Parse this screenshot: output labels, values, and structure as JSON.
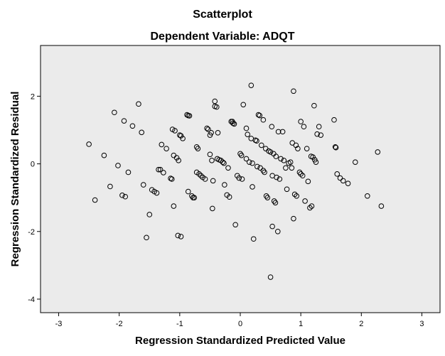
{
  "chart_data": {
    "type": "scatter",
    "title": "Scatterplot",
    "subtitle": "Dependent Variable: ADQT",
    "xlabel": "Regression Standardized Predicted Value",
    "ylabel": "Regression Standardized Residual",
    "xlim": [
      -3.3,
      3.3
    ],
    "ylim": [
      -4.4,
      3.5
    ],
    "xticks": [
      -3,
      -2,
      -1,
      0,
      1,
      2,
      3
    ],
    "yticks": [
      -4,
      -2,
      0,
      2
    ],
    "x_tick_labels": [
      "-3",
      "-2",
      "-1",
      "0",
      "1",
      "2",
      "3"
    ],
    "y_tick_labels": [
      "-4",
      "-2",
      "0",
      "2"
    ],
    "grid": false,
    "background_color": "#ebebeb",
    "marker_style": "open-circle",
    "points": [
      [
        -2.5,
        0.58
      ],
      [
        -2.4,
        -1.07
      ],
      [
        -2.25,
        0.25
      ],
      [
        -2.15,
        -0.67
      ],
      [
        -2.08,
        1.52
      ],
      [
        -2.02,
        -0.05
      ],
      [
        -1.95,
        -0.93
      ],
      [
        -1.9,
        -0.97
      ],
      [
        -1.92,
        1.27
      ],
      [
        -1.85,
        -0.25
      ],
      [
        -1.78,
        1.12
      ],
      [
        -1.68,
        1.77
      ],
      [
        -1.63,
        0.93
      ],
      [
        -1.6,
        -0.62
      ],
      [
        -1.55,
        -2.18
      ],
      [
        -1.5,
        -1.5
      ],
      [
        -1.46,
        -0.77
      ],
      [
        -1.42,
        -0.82
      ],
      [
        -1.38,
        -0.86
      ],
      [
        -1.35,
        -0.17
      ],
      [
        -1.32,
        -0.17
      ],
      [
        -1.3,
        0.57
      ],
      [
        -1.27,
        -0.26
      ],
      [
        -1.22,
        0.45
      ],
      [
        -1.15,
        -0.43
      ],
      [
        -1.13,
        -0.45
      ],
      [
        -1.12,
        1.02
      ],
      [
        -1.1,
        -1.25
      ],
      [
        -1.08,
        0.98
      ],
      [
        -1.1,
        0.25
      ],
      [
        -1.05,
        0.18
      ],
      [
        -1.02,
        0.1
      ],
      [
        -1.0,
        0.85
      ],
      [
        -0.98,
        0.83
      ],
      [
        -1.03,
        -2.12
      ],
      [
        -0.98,
        -2.15
      ],
      [
        -0.95,
        0.75
      ],
      [
        -0.88,
        1.45
      ],
      [
        -0.86,
        1.43
      ],
      [
        -0.84,
        1.42
      ],
      [
        -0.86,
        -0.82
      ],
      [
        -0.8,
        -0.95
      ],
      [
        -0.76,
        -1.0
      ],
      [
        -0.78,
        -1.0
      ],
      [
        -0.72,
        0.5
      ],
      [
        -0.7,
        0.45
      ],
      [
        -0.72,
        -0.25
      ],
      [
        -0.68,
        -0.3
      ],
      [
        -0.65,
        -0.35
      ],
      [
        -0.62,
        -0.4
      ],
      [
        -0.58,
        -0.45
      ],
      [
        -0.55,
        1.05
      ],
      [
        -0.53,
        1.02
      ],
      [
        -0.5,
        0.85
      ],
      [
        -0.5,
        0.28
      ],
      [
        -0.48,
        0.92
      ],
      [
        -0.47,
        0.1
      ],
      [
        -0.46,
        -1.32
      ],
      [
        -0.45,
        -0.5
      ],
      [
        -0.42,
        1.85
      ],
      [
        -0.42,
        1.7
      ],
      [
        -0.39,
        1.68
      ],
      [
        -0.38,
        0.15
      ],
      [
        -0.37,
        0.92
      ],
      [
        -0.35,
        0.12
      ],
      [
        -0.32,
        0.1
      ],
      [
        -0.29,
        0.05
      ],
      [
        -0.27,
        0.02
      ],
      [
        -0.26,
        -0.62
      ],
      [
        -0.22,
        -0.92
      ],
      [
        -0.2,
        -0.12
      ],
      [
        -0.18,
        -0.98
      ],
      [
        -0.15,
        1.25
      ],
      [
        -0.13,
        1.25
      ],
      [
        -0.12,
        1.2
      ],
      [
        -0.1,
        1.18
      ],
      [
        -0.08,
        -1.8
      ],
      [
        -0.05,
        -0.35
      ],
      [
        -0.02,
        -0.42
      ],
      [
        0.0,
        0.3
      ],
      [
        0.02,
        0.25
      ],
      [
        0.03,
        -0.45
      ],
      [
        0.05,
        1.75
      ],
      [
        0.1,
        1.05
      ],
      [
        0.12,
        0.87
      ],
      [
        0.1,
        0.15
      ],
      [
        0.15,
        0.05
      ],
      [
        0.18,
        0.75
      ],
      [
        0.2,
        0.02
      ],
      [
        0.18,
        2.32
      ],
      [
        0.2,
        -0.68
      ],
      [
        0.22,
        -2.22
      ],
      [
        0.25,
        0.7
      ],
      [
        0.27,
        0.68
      ],
      [
        0.28,
        -0.08
      ],
      [
        0.3,
        1.45
      ],
      [
        0.32,
        1.43
      ],
      [
        0.33,
        -0.12
      ],
      [
        0.35,
        0.55
      ],
      [
        0.38,
        1.3
      ],
      [
        0.38,
        -0.2
      ],
      [
        0.4,
        -0.25
      ],
      [
        0.42,
        0.45
      ],
      [
        0.43,
        -0.95
      ],
      [
        0.45,
        -1.0
      ],
      [
        0.47,
        0.38
      ],
      [
        0.5,
        -3.35
      ],
      [
        0.52,
        1.1
      ],
      [
        0.5,
        0.35
      ],
      [
        0.53,
        -0.35
      ],
      [
        0.53,
        -1.85
      ],
      [
        0.55,
        0.3
      ],
      [
        0.56,
        -1.1
      ],
      [
        0.58,
        -1.15
      ],
      [
        0.59,
        0.22
      ],
      [
        0.6,
        -0.4
      ],
      [
        0.62,
        -2.0
      ],
      [
        0.63,
        0.95
      ],
      [
        0.65,
        -0.45
      ],
      [
        0.67,
        0.15
      ],
      [
        0.7,
        0.95
      ],
      [
        0.72,
        0.1
      ],
      [
        0.75,
        -0.12
      ],
      [
        0.77,
        -0.75
      ],
      [
        0.8,
        0.02
      ],
      [
        0.83,
        0.05
      ],
      [
        0.85,
        -0.12
      ],
      [
        0.86,
        0.62
      ],
      [
        0.88,
        2.15
      ],
      [
        0.88,
        -1.62
      ],
      [
        0.9,
        -0.9
      ],
      [
        0.92,
        0.55
      ],
      [
        0.93,
        -0.95
      ],
      [
        0.95,
        0.45
      ],
      [
        0.98,
        -0.25
      ],
      [
        1.0,
        1.25
      ],
      [
        1.0,
        -0.3
      ],
      [
        1.03,
        -0.35
      ],
      [
        1.05,
        1.1
      ],
      [
        1.07,
        -1.1
      ],
      [
        1.1,
        0.45
      ],
      [
        1.12,
        -0.52
      ],
      [
        1.15,
        -1.3
      ],
      [
        1.17,
        0.22
      ],
      [
        1.18,
        -1.25
      ],
      [
        1.2,
        0.2
      ],
      [
        1.22,
        1.72
      ],
      [
        1.23,
        0.12
      ],
      [
        1.25,
        0.05
      ],
      [
        1.27,
        0.88
      ],
      [
        1.3,
        1.1
      ],
      [
        1.33,
        0.85
      ],
      [
        1.55,
        1.3
      ],
      [
        1.57,
        0.5
      ],
      [
        1.58,
        0.48
      ],
      [
        1.6,
        -0.3
      ],
      [
        1.65,
        -0.42
      ],
      [
        1.7,
        -0.5
      ],
      [
        1.78,
        -0.58
      ],
      [
        1.9,
        0.05
      ],
      [
        2.1,
        -0.95
      ],
      [
        2.27,
        0.35
      ],
      [
        2.33,
        -1.25
      ]
    ]
  }
}
